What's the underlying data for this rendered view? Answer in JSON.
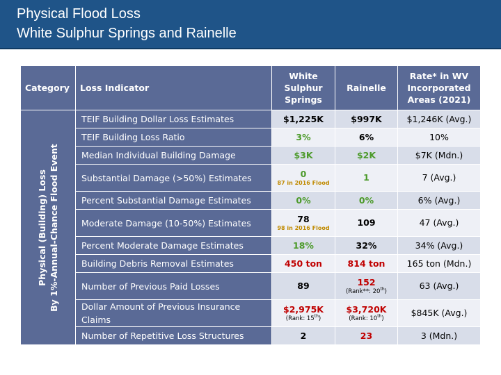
{
  "title": {
    "line1": "Physical Flood Loss",
    "line2": "White Sulphur Springs and Rainelle"
  },
  "headers": {
    "category": "Category",
    "indicator": "Loss Indicator",
    "wss": "White Sulphur Springs",
    "rainelle": "Rainelle",
    "rate": "Rate* in WV Incorporated Areas (2021)"
  },
  "category": {
    "line1": "Physical (Building) Loss",
    "line2": "By 1%-Annual-Chance Flood Event"
  },
  "colors": {
    "title_bar": "#1f5488",
    "header_bg": "#5a6a96",
    "green": "#4c9a2a",
    "red": "#c00000",
    "note": "#c08a00"
  },
  "rows": [
    {
      "indicator": "TEIF Building Dollar Loss Estimates",
      "wss": {
        "value": "$1,225K",
        "color": "black"
      },
      "rainelle": {
        "value": "$997K",
        "color": "black"
      },
      "rate": "$1,246K (Avg.)"
    },
    {
      "indicator": "TEIF Building Loss Ratio",
      "wss": {
        "value": "3%",
        "color": "green"
      },
      "rainelle": {
        "value": "6%",
        "color": "black"
      },
      "rate": "10%"
    },
    {
      "indicator": "Median Individual Building Damage",
      "wss": {
        "value": "$3K",
        "color": "green"
      },
      "rainelle": {
        "value": "$2K",
        "color": "green"
      },
      "rate": "$7K (Mdn.)"
    },
    {
      "indicator": "Substantial Damage (>50%) Estimates",
      "wss": {
        "value": "0",
        "color": "green",
        "note": "87 in 2016 Flood"
      },
      "rainelle": {
        "value": "1",
        "color": "green"
      },
      "rate": "7 (Avg.)"
    },
    {
      "indicator": "Percent Substantial Damage Estimates",
      "wss": {
        "value": "0%",
        "color": "green"
      },
      "rainelle": {
        "value": "0%",
        "color": "green"
      },
      "rate": "6% (Avg.)"
    },
    {
      "indicator": "Moderate Damage (10-50%) Estimates",
      "wss": {
        "value": "78",
        "color": "black",
        "note": "98 in 2016 Flood"
      },
      "rainelle": {
        "value": "109",
        "color": "black"
      },
      "rate": "47 (Avg.)"
    },
    {
      "indicator": "Percent Moderate Damage Estimates",
      "wss": {
        "value": "18%",
        "color": "green"
      },
      "rainelle": {
        "value": "32%",
        "color": "black"
      },
      "rate": "34% (Avg.)"
    },
    {
      "indicator": "Building Debris Removal Estimates",
      "wss": {
        "value": "450 ton",
        "color": "red"
      },
      "rainelle": {
        "value": "814 ton",
        "color": "red"
      },
      "rate": "165 ton (Mdn.)"
    },
    {
      "indicator": "Number of Previous Paid Losses",
      "wss": {
        "value": "89",
        "color": "black"
      },
      "rainelle": {
        "value": "152",
        "color": "red",
        "rank_pre": "(Rank**: 20",
        "rank_sup": "th",
        "rank_post": ")"
      },
      "rate": "63 (Avg.)"
    },
    {
      "indicator": "Dollar Amount of Previous Insurance Claims",
      "wss": {
        "value": "$2,975K",
        "color": "red",
        "rank_pre": "(Rank: 15",
        "rank_sup": "th",
        "rank_post": ")"
      },
      "rainelle": {
        "value": "$3,720K",
        "color": "red",
        "rank_pre": "(Rank: 10",
        "rank_sup": "th",
        "rank_post": ")"
      },
      "rate": "$845K (Avg.)"
    },
    {
      "indicator": "Number of Repetitive Loss Structures",
      "wss": {
        "value": "2",
        "color": "black"
      },
      "rainelle": {
        "value": "23",
        "color": "red"
      },
      "rate": "3 (Mdn.)"
    }
  ]
}
